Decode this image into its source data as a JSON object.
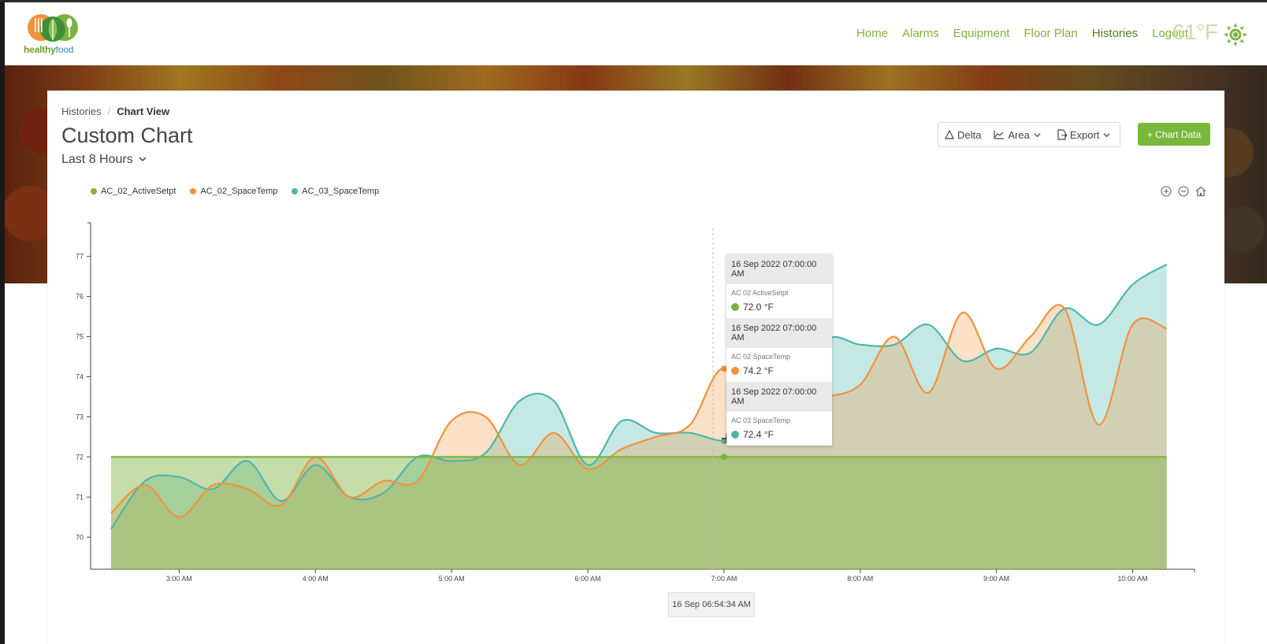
{
  "brand": {
    "word_a": "healthy",
    "word_b": "food"
  },
  "nav": [
    "Home",
    "Alarms",
    "Equipment",
    "Floor Plan",
    "Histories",
    "Logout"
  ],
  "nav_active": "Histories",
  "weather": {
    "temperature": "61°F",
    "icon": "sun-icon"
  },
  "breadcrumb": {
    "parent": "Histories",
    "current": "Chart View"
  },
  "page_title": "Custom Chart",
  "time_range": "Last 8 Hours",
  "toolbar": {
    "delta": "Delta",
    "area": "Area",
    "export": "Export",
    "add": "+ Chart Data"
  },
  "colors": {
    "accent": "#7ab83a",
    "setpt": "#7cb342",
    "space02": "#f0923a",
    "space03": "#4db6ac"
  },
  "tooltip": {
    "entries": [
      {
        "time": "16 Sep 2022 07:00:00 AM",
        "name": "AC 02 ActiveSetpt",
        "value": "72.0 °F",
        "color": "#7cb342"
      },
      {
        "time": "16 Sep 2022 07:00:00 AM",
        "name": "AC 02 SpaceTemp",
        "value": "74.2 °F",
        "color": "#f0923a"
      },
      {
        "time": "16 Sep 2022 07:00:00 AM",
        "name": "AC 03 SpaceTemp",
        "value": "72.4 °F",
        "color": "#4db6ac"
      }
    ]
  },
  "crosshair_label": "16 Sep 06:54:34 AM",
  "chart_data": {
    "type": "area",
    "x_unit": "hours",
    "x_ticks": [
      3,
      4,
      5,
      6,
      7,
      8,
      9,
      10
    ],
    "x_tick_labels": [
      "3:00 AM",
      "4:00 AM",
      "5:00 AM",
      "6:00 AM",
      "7:00 AM",
      "8:00 AM",
      "9:00 AM",
      "10:00 AM"
    ],
    "xlim": [
      2.35,
      10.35
    ],
    "ylim": [
      69.2,
      77.8
    ],
    "y_ticks": [
      70,
      71,
      72,
      73,
      74,
      75,
      76,
      77
    ],
    "y_tick_labels": [
      "70",
      "71",
      "72",
      "73",
      "74",
      "75",
      "76",
      "77"
    ],
    "legend_position": "top-left",
    "series": [
      {
        "name": "AC_02_ActiveSetpt",
        "color": "#7cb342",
        "x": [
          2.5,
          10.25
        ],
        "y": [
          72.0,
          72.0
        ]
      },
      {
        "name": "AC_02_SpaceTemp",
        "color": "#f0923a",
        "x": [
          2.5,
          2.75,
          3.0,
          3.25,
          3.5,
          3.75,
          4.0,
          4.25,
          4.5,
          4.75,
          5.0,
          5.25,
          5.5,
          5.75,
          6.0,
          6.25,
          6.5,
          6.75,
          7.0,
          7.25,
          7.5,
          7.75,
          8.0,
          8.25,
          8.5,
          8.75,
          9.0,
          9.25,
          9.5,
          9.75,
          10.0,
          10.25
        ],
        "y": [
          70.6,
          71.3,
          70.5,
          71.3,
          71.2,
          70.8,
          72.0,
          71.0,
          71.4,
          71.4,
          72.9,
          73.0,
          71.8,
          72.6,
          71.7,
          72.2,
          72.5,
          72.8,
          74.2,
          72.4,
          73.4,
          73.5,
          73.8,
          75.0,
          73.6,
          75.6,
          74.2,
          75.0,
          75.7,
          72.8,
          75.3,
          75.2
        ]
      },
      {
        "name": "AC_03_SpaceTemp",
        "color": "#4db6ac",
        "x": [
          2.5,
          2.75,
          3.0,
          3.25,
          3.5,
          3.75,
          4.0,
          4.25,
          4.5,
          4.75,
          5.0,
          5.25,
          5.5,
          5.75,
          6.0,
          6.25,
          6.5,
          6.75,
          7.0,
          7.25,
          7.5,
          7.75,
          8.0,
          8.25,
          8.5,
          8.75,
          9.0,
          9.25,
          9.5,
          9.75,
          10.0,
          10.25
        ],
        "y": [
          70.2,
          71.4,
          71.5,
          71.2,
          71.9,
          70.9,
          71.8,
          71.0,
          71.1,
          72.0,
          71.9,
          72.1,
          73.4,
          73.4,
          71.8,
          72.9,
          72.6,
          72.6,
          72.4,
          72.6,
          73.3,
          74.9,
          74.8,
          74.8,
          75.3,
          74.4,
          74.7,
          74.6,
          75.7,
          75.3,
          76.3,
          76.8
        ]
      }
    ]
  }
}
